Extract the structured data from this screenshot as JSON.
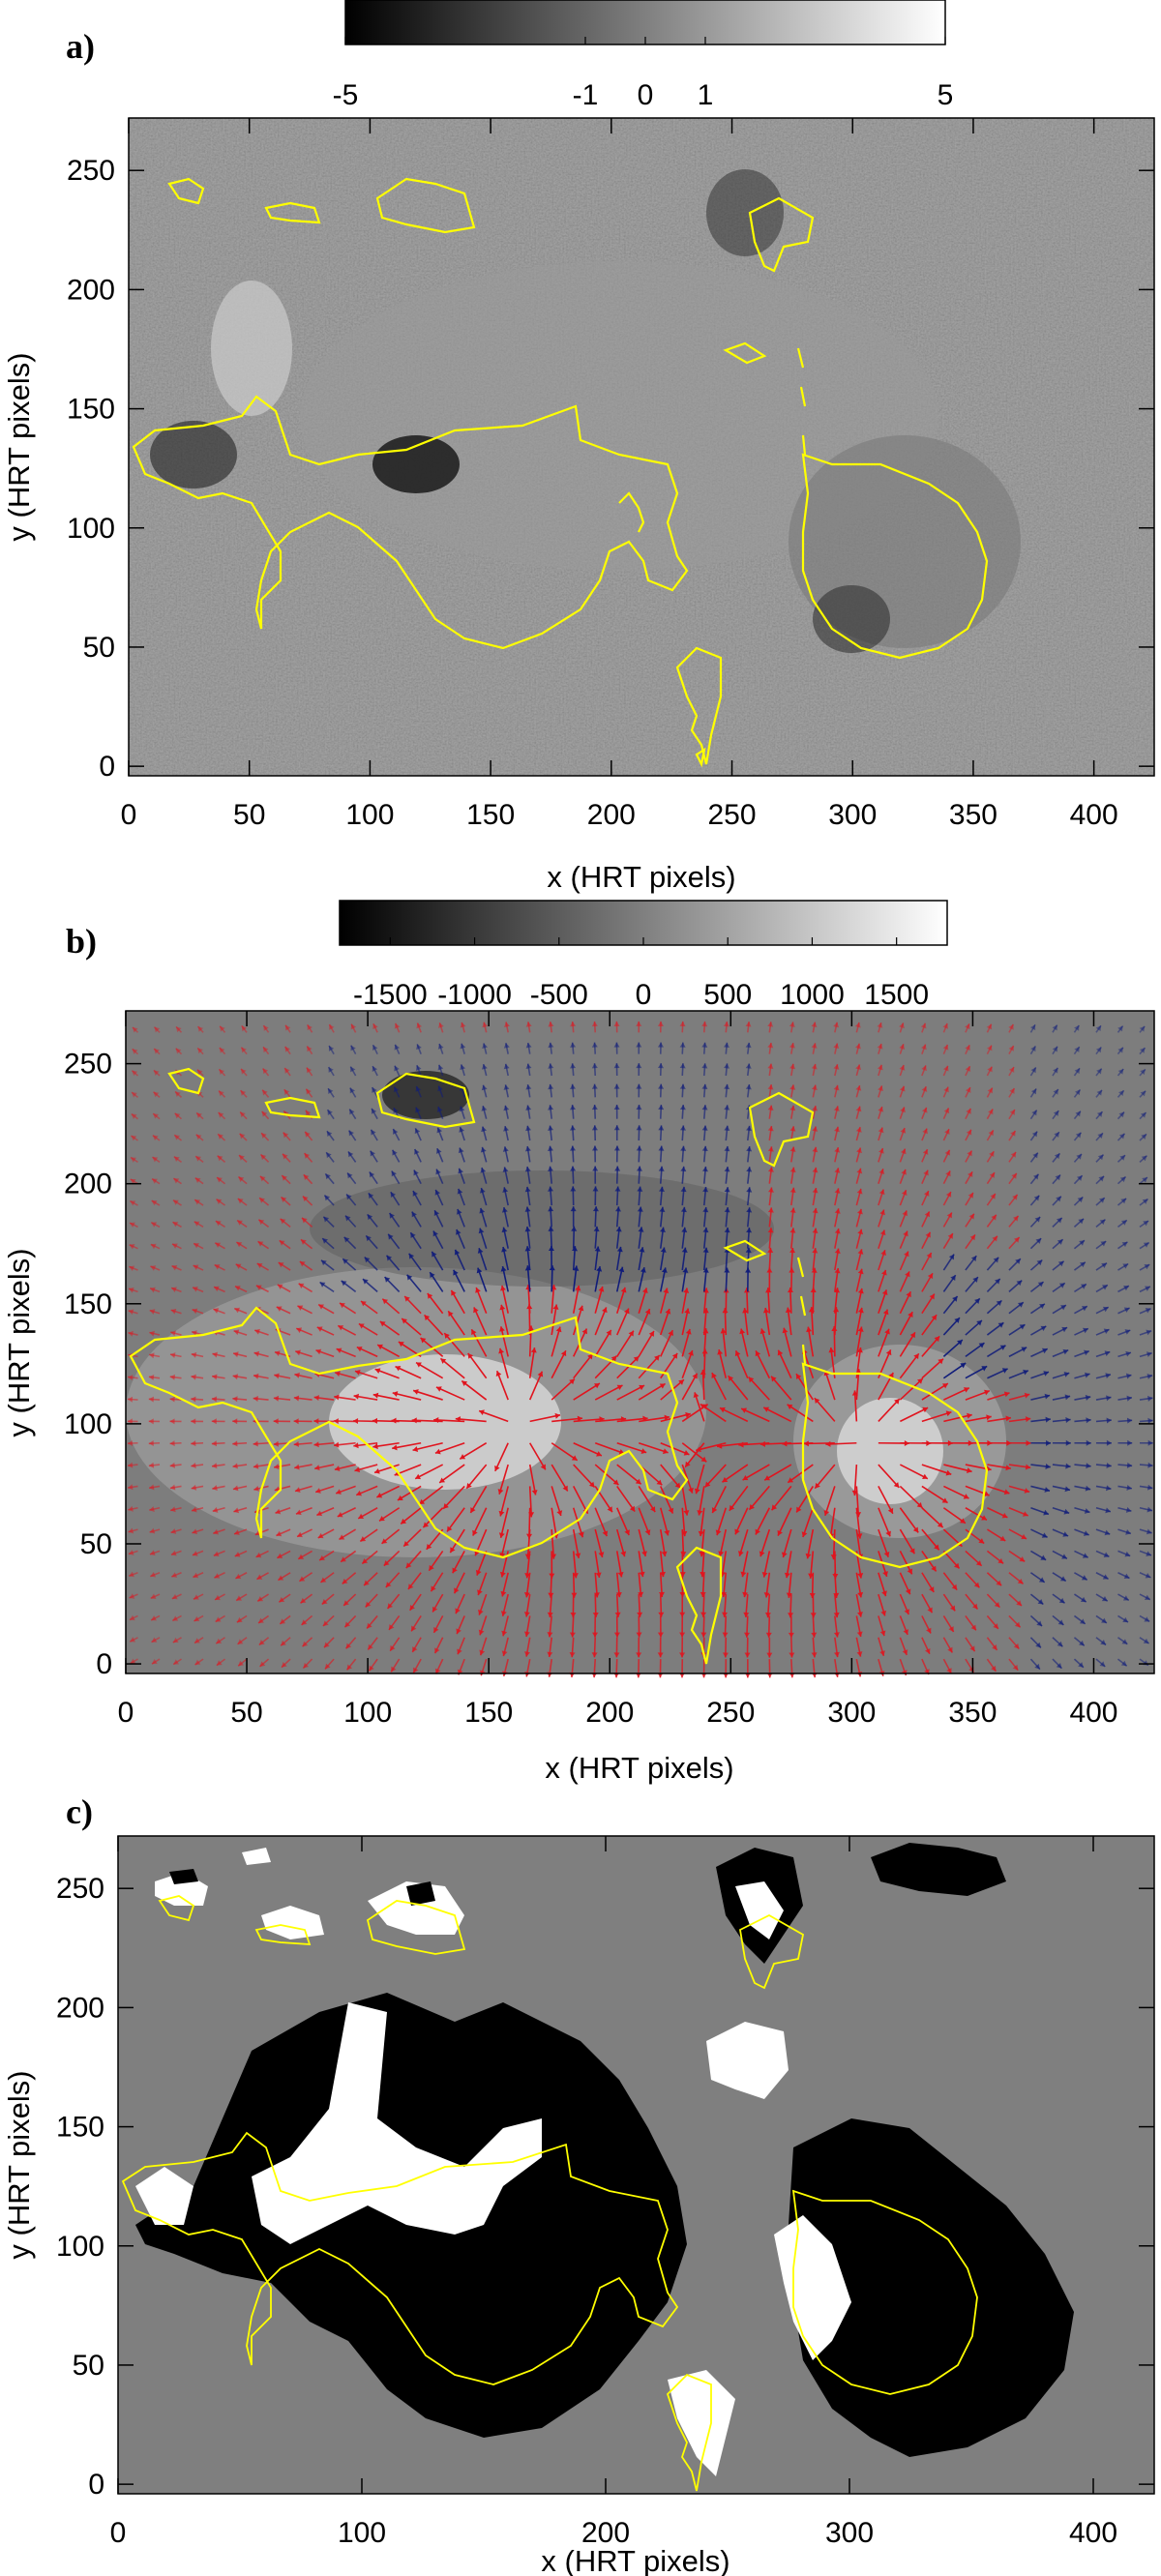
{
  "chart_data": [
    {
      "panel": "a)",
      "type": "heatmap",
      "colorbar": {
        "ticks": [
          -5,
          -1,
          0,
          1,
          5
        ],
        "range": [
          -5,
          5
        ],
        "colors": [
          "#000000",
          "#ffffff"
        ]
      },
      "xlabel": "x (HRT pixels)",
      "ylabel": "y (HRT pixels)",
      "xticks": [
        0,
        50,
        100,
        150,
        200,
        250,
        300,
        350,
        400
      ],
      "yticks": [
        0,
        50,
        100,
        150,
        200,
        250
      ],
      "xlim": [
        0,
        425
      ],
      "ylim": [
        -4,
        272
      ],
      "background": "#8a8a8a",
      "contour_color": "#ffff00"
    },
    {
      "panel": "b)",
      "type": "heatmap",
      "colorbar": {
        "ticks": [
          -1500,
          -1000,
          -500,
          0,
          500,
          1000,
          1500
        ],
        "range": [
          -1800,
          1800
        ],
        "colors": [
          "#000000",
          "#ffffff"
        ]
      },
      "xlabel": "x (HRT pixels)",
      "ylabel": "y (HRT pixels)",
      "xticks": [
        0,
        50,
        100,
        150,
        200,
        250,
        300,
        350,
        400
      ],
      "yticks": [
        0,
        50,
        100,
        150,
        200,
        250
      ],
      "xlim": [
        0,
        425
      ],
      "ylim": [
        -4,
        272
      ],
      "background": "#7d7d7d",
      "arrow_colors": {
        "positive": "#e0141e",
        "negative": "#101c7a"
      },
      "contour_color": "#ffff00"
    },
    {
      "panel": "c)",
      "type": "heatmap",
      "xlabel": "x (HRT pixels)",
      "ylabel": "y (HRT pixels)",
      "xticks": [
        0,
        100,
        200,
        300,
        400
      ],
      "yticks": [
        0,
        50,
        100,
        150,
        200,
        250
      ],
      "xlim": [
        0,
        425
      ],
      "ylim": [
        -4,
        272
      ],
      "background": "#7f7f7f",
      "contour_color": "#ffff00"
    }
  ]
}
